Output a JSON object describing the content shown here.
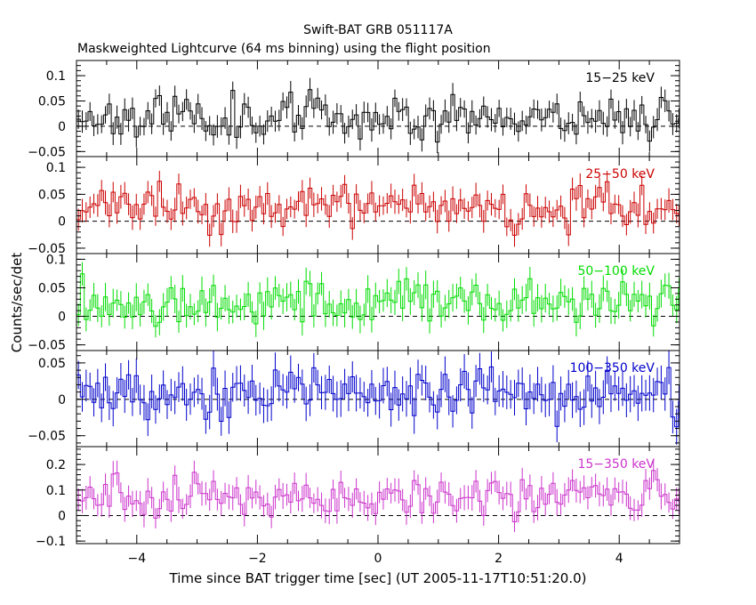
{
  "title_line1": "Swift-BAT GRB 051117A",
  "title_line2": "Maskweighted Lightcurve (64 ms binning) using the flight position",
  "xlabel": "Time since BAT trigger time [sec] (UT 2005-11-17T10:51:20.0)",
  "ylabel": "Counts/sec/det",
  "chart_data": {
    "type": "line",
    "title": "Swift-BAT GRB 051117A",
    "subtitle": "Maskweighted Lightcurve (64 ms binning) using the flight position",
    "xlabel": "Time since BAT trigger time [sec] (UT 2005-11-17T10:51:20.0)",
    "ylabel": "Counts/sec/det",
    "xlim": [
      -5,
      5
    ],
    "x_bin_width": 0.064,
    "x_ticks": [
      "−4",
      "−2",
      "0",
      "2",
      "4"
    ],
    "x_tick_values": [
      -4,
      -2,
      0,
      2,
      4
    ],
    "grid": false,
    "panels": [
      {
        "label": "15−25 keV",
        "color": "#000000",
        "ylim": [
          -0.06,
          0.13
        ],
        "y_ticks": [
          "0.1",
          "0.05",
          "0",
          "−0.05"
        ],
        "y_tick_values": [
          0.1,
          0.05,
          0,
          -0.05
        ],
        "mean": 0.02,
        "noise": 0.022,
        "err": 0.02,
        "seed": 11
      },
      {
        "label": "25−50 keV",
        "color": "#cc0000",
        "ylim": [
          -0.06,
          0.12
        ],
        "y_ticks": [
          "0.1",
          "0.05",
          "0",
          "−0.05"
        ],
        "y_tick_values": [
          0.1,
          0.05,
          0,
          -0.05
        ],
        "mean": 0.025,
        "noise": 0.02,
        "err": 0.02,
        "seed": 23
      },
      {
        "label": "50−100 keV",
        "color": "#00dd00",
        "ylim": [
          -0.06,
          0.11
        ],
        "y_ticks": [
          "0.1",
          "0.05",
          "0",
          "−0.05"
        ],
        "y_tick_values": [
          0.1,
          0.05,
          0,
          -0.05
        ],
        "mean": 0.025,
        "noise": 0.02,
        "err": 0.022,
        "seed": 37
      },
      {
        "label": "100−350 keV",
        "color": "#0000cc",
        "ylim": [
          -0.065,
          0.067
        ],
        "y_ticks": [
          "0.05",
          "0",
          "−0.05"
        ],
        "y_tick_values": [
          0.05,
          0,
          -0.05
        ],
        "mean": 0.008,
        "noise": 0.018,
        "err": 0.022,
        "seed": 53
      },
      {
        "label": "15−350 keV",
        "color": "#cc33cc",
        "ylim": [
          -0.11,
          0.27
        ],
        "y_ticks": [
          "0.2",
          "0.1",
          "0",
          "−0.1"
        ],
        "y_tick_values": [
          0.2,
          0.1,
          0,
          -0.1
        ],
        "mean": 0.075,
        "noise": 0.04,
        "err": 0.045,
        "seed": 71
      }
    ]
  }
}
